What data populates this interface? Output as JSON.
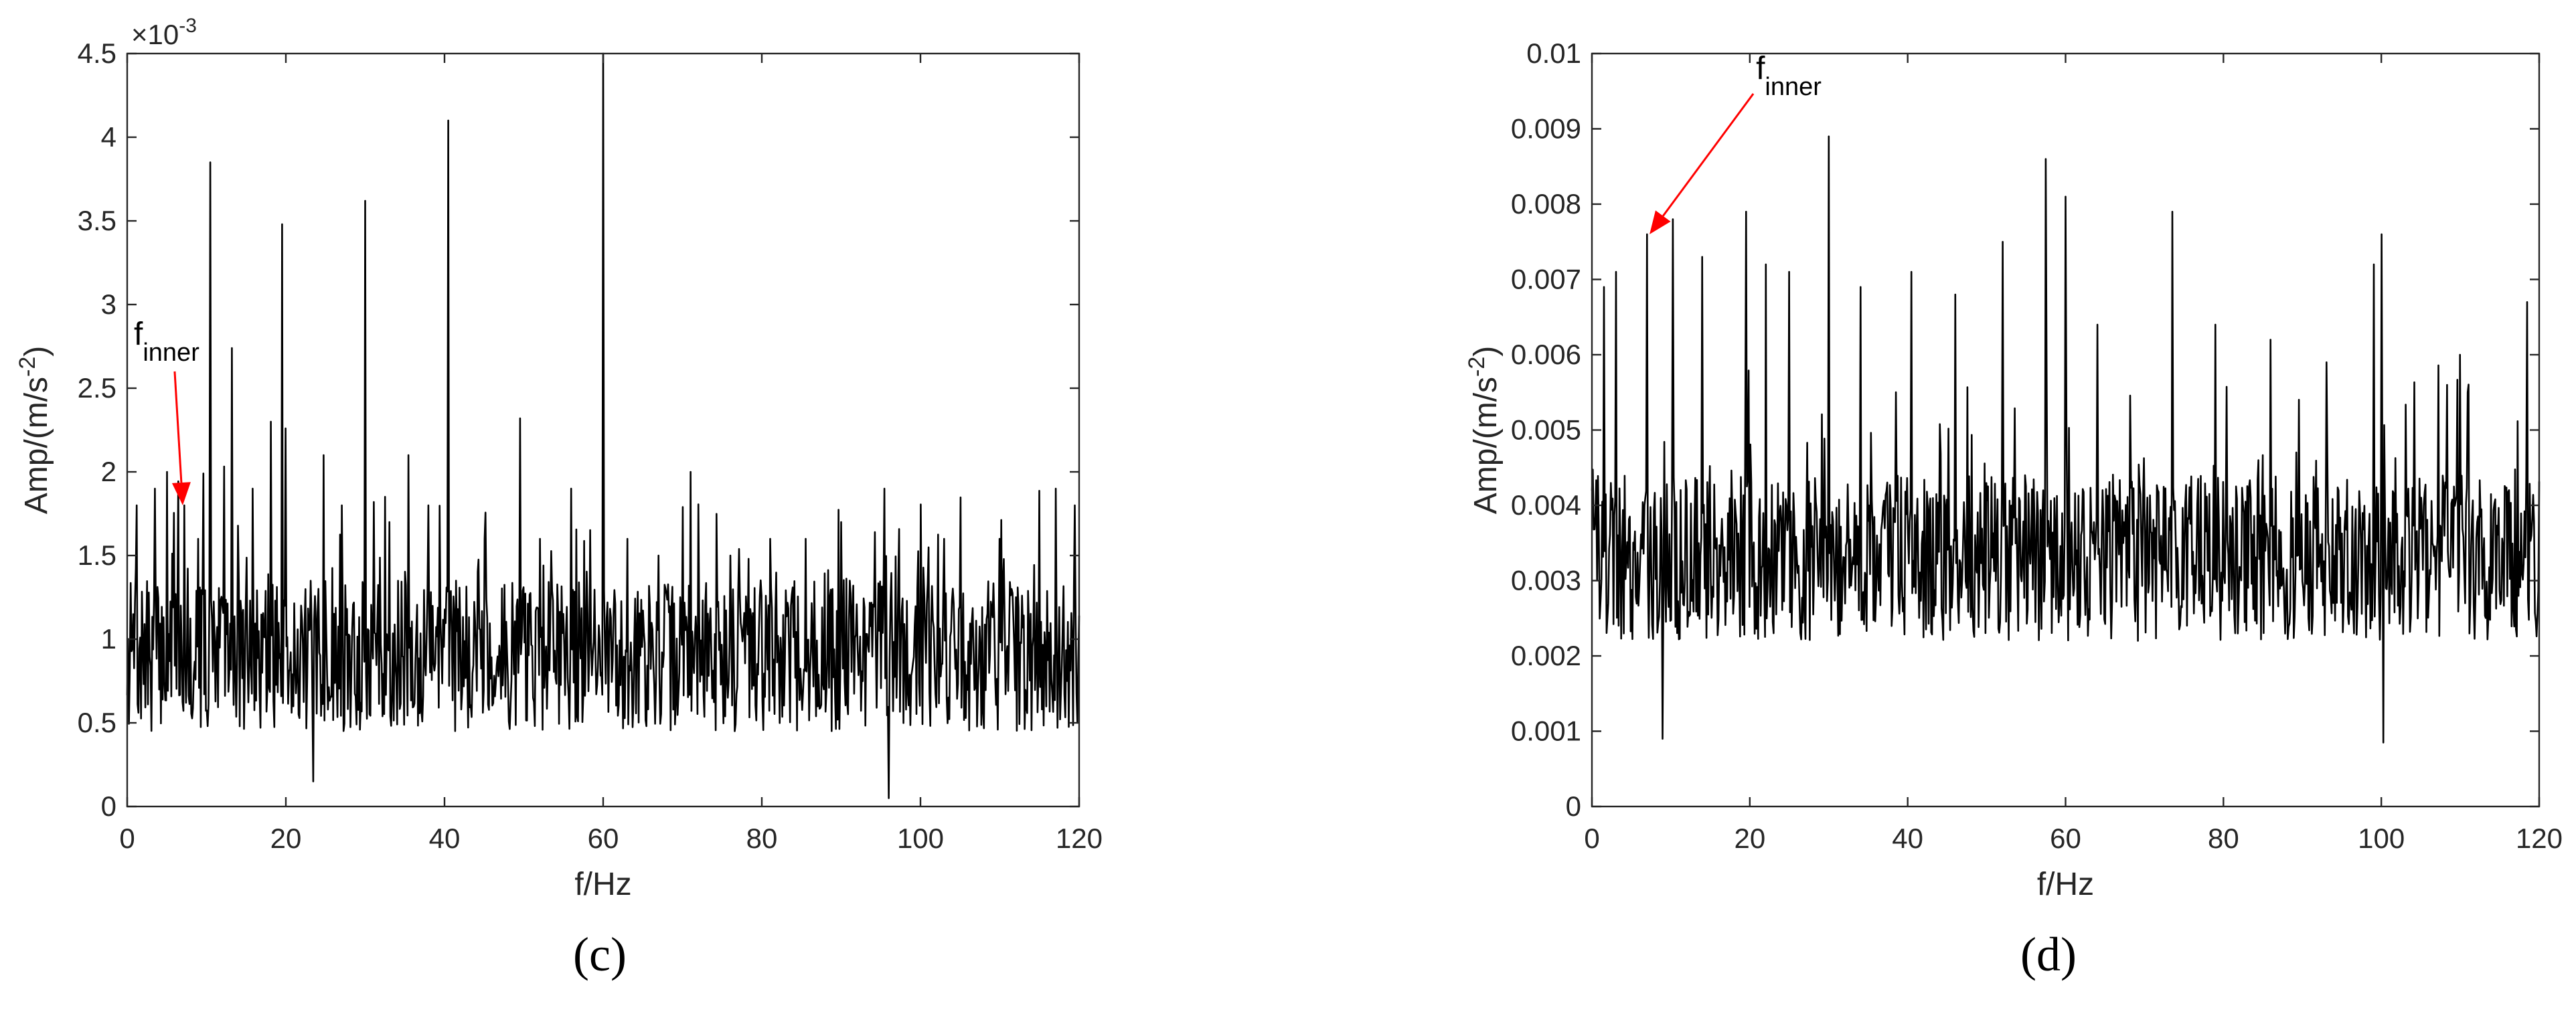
{
  "chart_data": [
    {
      "type": "line",
      "panel_label": "(c)",
      "xlabel": "f/Hz",
      "ylabel": "Amp/(m/s-2)",
      "ylabel_parts": {
        "main": "Amp/(m/s",
        "sup": "-2",
        "close": ")"
      },
      "exponent_label": {
        "base": "×10",
        "sup": "-3"
      },
      "xlim": [
        0,
        120
      ],
      "ylim": [
        0,
        0.0045
      ],
      "xticks": [
        0,
        20,
        40,
        60,
        80,
        100,
        120
      ],
      "yticks": [
        0,
        0.0005,
        0.001,
        0.0015,
        0.002,
        0.0025,
        0.003,
        0.0035,
        0.004,
        0.0045
      ],
      "xtick_labels": [
        "0",
        "20",
        "40",
        "60",
        "80",
        "100",
        "120"
      ],
      "ytick_labels": [
        "0",
        "0.5",
        "1",
        "1.5",
        "2",
        "2.5",
        "3",
        "3.5",
        "4",
        "4.5"
      ],
      "grid": false,
      "series_color": "#000000",
      "baseline": 0.0009,
      "noise": 0.00045,
      "seed": 7,
      "peaks": [
        [
          1.2,
          0.0018
        ],
        [
          3.5,
          0.0019
        ],
        [
          5.0,
          0.002
        ],
        [
          7.2,
          0.0018
        ],
        [
          8.9,
          0.0016
        ],
        [
          10.5,
          0.00385
        ],
        [
          13.2,
          0.00274
        ],
        [
          15.8,
          0.0019
        ],
        [
          18.1,
          0.0023
        ],
        [
          19.5,
          0.00348
        ],
        [
          20.0,
          0.00226
        ],
        [
          24.8,
          0.0021
        ],
        [
          27.0,
          0.0018
        ],
        [
          30.0,
          0.00362
        ],
        [
          33.0,
          0.0017
        ],
        [
          35.5,
          0.0021
        ],
        [
          38.0,
          0.0018
        ],
        [
          40.5,
          0.0041
        ],
        [
          45.0,
          0.0016
        ],
        [
          49.5,
          0.00232
        ],
        [
          52.0,
          0.0016
        ],
        [
          56.0,
          0.0019
        ],
        [
          60.0,
          0.0045
        ],
        [
          63.0,
          0.0016
        ],
        [
          67.0,
          0.0015
        ],
        [
          71.0,
          0.002
        ],
        [
          76.0,
          0.0015
        ],
        [
          81.0,
          0.0016
        ],
        [
          85.5,
          0.0016
        ],
        [
          90.0,
          0.0017
        ],
        [
          95.5,
          0.0019
        ],
        [
          103.0,
          0.0016
        ],
        [
          110.0,
          0.0016
        ],
        [
          117.0,
          0.0019
        ],
        [
          119.5,
          0.0018
        ]
      ],
      "dips": [
        [
          23.5,
          0.00015
        ],
        [
          96.0,
          5e-05
        ]
      ],
      "annotation": {
        "text": "f",
        "subscript": "inner",
        "x": 7,
        "y": 0.0018,
        "color": "#ff0000"
      }
    },
    {
      "type": "line",
      "panel_label": "(d)",
      "xlabel": "f/Hz",
      "ylabel": "Amp/(m/s-2)",
      "ylabel_parts": {
        "main": "Amp/(m/s",
        "sup": "-2",
        "close": ")"
      },
      "xlim": [
        0,
        120
      ],
      "ylim": [
        0,
        0.01
      ],
      "xticks": [
        0,
        20,
        40,
        60,
        80,
        100,
        120
      ],
      "yticks": [
        0,
        0.001,
        0.002,
        0.003,
        0.004,
        0.005,
        0.006,
        0.007,
        0.008,
        0.009,
        0.01
      ],
      "xtick_labels": [
        "0",
        "20",
        "40",
        "60",
        "80",
        "100",
        "120"
      ],
      "ytick_labels": [
        "0",
        "0.001",
        "0.002",
        "0.003",
        "0.004",
        "0.005",
        "0.006",
        "0.007",
        "0.008",
        "0.009",
        "0.01"
      ],
      "grid": false,
      "series_color": "#000000",
      "baseline": 0.0033,
      "noise": 0.0011,
      "seed": 19,
      "peaks": [
        [
          1.5,
          0.0069
        ],
        [
          3.0,
          0.0071
        ],
        [
          7.0,
          0.0076
        ],
        [
          10.3,
          0.0078
        ],
        [
          14.0,
          0.0073
        ],
        [
          19.5,
          0.0079
        ],
        [
          22.0,
          0.0072
        ],
        [
          25.0,
          0.0071
        ],
        [
          30.0,
          0.0089
        ],
        [
          34.0,
          0.0069
        ],
        [
          40.5,
          0.0071
        ],
        [
          46.0,
          0.0068
        ],
        [
          52.0,
          0.0075
        ],
        [
          57.5,
          0.0086
        ],
        [
          60.0,
          0.0081
        ],
        [
          64.0,
          0.0064
        ],
        [
          73.5,
          0.0079
        ],
        [
          79.0,
          0.0064
        ],
        [
          86.0,
          0.0062
        ],
        [
          93.0,
          0.0059
        ],
        [
          99.0,
          0.0072
        ],
        [
          100.0,
          0.0076
        ],
        [
          110.0,
          0.006
        ],
        [
          118.5,
          0.0067
        ]
      ],
      "dips": [
        [
          8.9,
          0.0009
        ],
        [
          100.2,
          0.00085
        ]
      ],
      "annotation": {
        "text": "f",
        "subscript": "inner",
        "x": 7.3,
        "y": 0.0076,
        "color": "#ff0000"
      }
    }
  ]
}
